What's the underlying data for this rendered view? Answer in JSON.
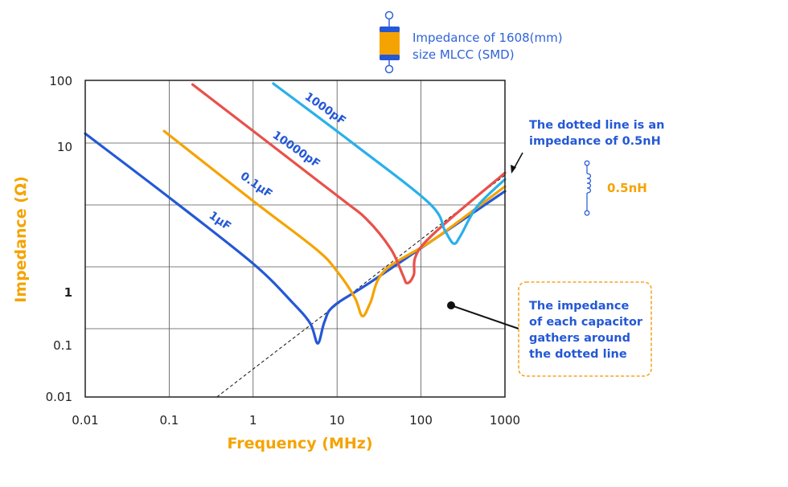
{
  "chart_data": {
    "type": "line",
    "title": "",
    "xlabel": "Frequency (MHz)",
    "ylabel": "Impedance (Ω)",
    "x_scale": "log",
    "y_scale": "log",
    "xlim": [
      0.01,
      1000
    ],
    "ylim": [
      0.01,
      100
    ],
    "grid": true,
    "x_ticks": [
      "0.01",
      "0.1",
      "1",
      "10",
      "100",
      "1000"
    ],
    "y_ticks": [
      {
        "label": "100",
        "value": 100
      },
      {
        "label": "10",
        "value": 10
      },
      {
        "label": "1",
        "value": 1
      },
      {
        "label": "0.1",
        "value": 0.1
      },
      {
        "label": "0.01",
        "value": 0.01
      }
    ],
    "series": [
      {
        "name": "1μF",
        "color": "#2458d6",
        "points": [
          [
            0.01,
            16
          ],
          [
            0.1,
            4.5
          ],
          [
            1.0,
            1.58
          ],
          [
            2.96,
            0.64
          ],
          [
            4.8,
            0.26
          ],
          [
            5.9,
            0.11
          ],
          [
            7.1,
            0.285
          ],
          [
            9.3,
            0.57
          ],
          [
            28.7,
            1.24
          ],
          [
            1000,
            4.97
          ]
        ]
      },
      {
        "name": "0.1μF",
        "color": "#f5a300",
        "points": [
          [
            0.087,
            17.5
          ],
          [
            1.0,
            4.26
          ],
          [
            5.6,
            1.99
          ],
          [
            9.9,
            1.41
          ],
          [
            16.2,
            0.81
          ],
          [
            20,
            0.36
          ],
          [
            24.9,
            0.64
          ],
          [
            36.7,
            1.41
          ],
          [
            146,
            2.34
          ],
          [
            1000,
            5.36
          ]
        ]
      },
      {
        "name": "10000pF",
        "color": "#e8514a",
        "points": [
          [
            0.19,
            89
          ],
          [
            9.9,
            4.66
          ],
          [
            22.5,
            3.19
          ],
          [
            43.7,
            1.99
          ],
          [
            61,
            1.31
          ],
          [
            68,
            1.16
          ],
          [
            81.6,
            1.31
          ],
          [
            108,
            2.17
          ],
          [
            1000,
            6.65
          ]
        ]
      },
      {
        "name": "1000pF",
        "color": "#29b0ea",
        "points": [
          [
            1.74,
            92
          ],
          [
            16.2,
            10.9
          ],
          [
            126,
            4.1
          ],
          [
            193,
            2.66
          ],
          [
            245,
            2.17
          ],
          [
            297,
            2.47
          ],
          [
            465,
            3.9
          ],
          [
            1000,
            6.0
          ]
        ]
      }
    ],
    "reference_line": {
      "style": "dotted",
      "color": "#111111",
      "points": [
        [
          0.37,
          0.01
        ],
        [
          1,
          0.035
        ],
        [
          10,
          0.59
        ],
        [
          100,
          2.32
        ],
        [
          1000,
          6.4
        ]
      ]
    },
    "annotations": {
      "dotted_note": [
        "The dotted line is an",
        "impedance of 0.5nH"
      ],
      "gather_note": [
        "The impedance",
        "of each capacitor",
        "gathers around",
        "the dotted line"
      ],
      "box_border_color": "#f5a623"
    }
  },
  "legend": {
    "capacitor_icon": "mlcc-capacitor-icon",
    "capacitor_text": [
      "Impedance of 1608(mm)",
      "size MLCC (SMD)"
    ],
    "inductor_icon": "inductor-coil-icon",
    "inductor_label": "0.5nH"
  },
  "colors": {
    "axis_title": "#f5a300",
    "annotation_text": "#2458d6"
  }
}
